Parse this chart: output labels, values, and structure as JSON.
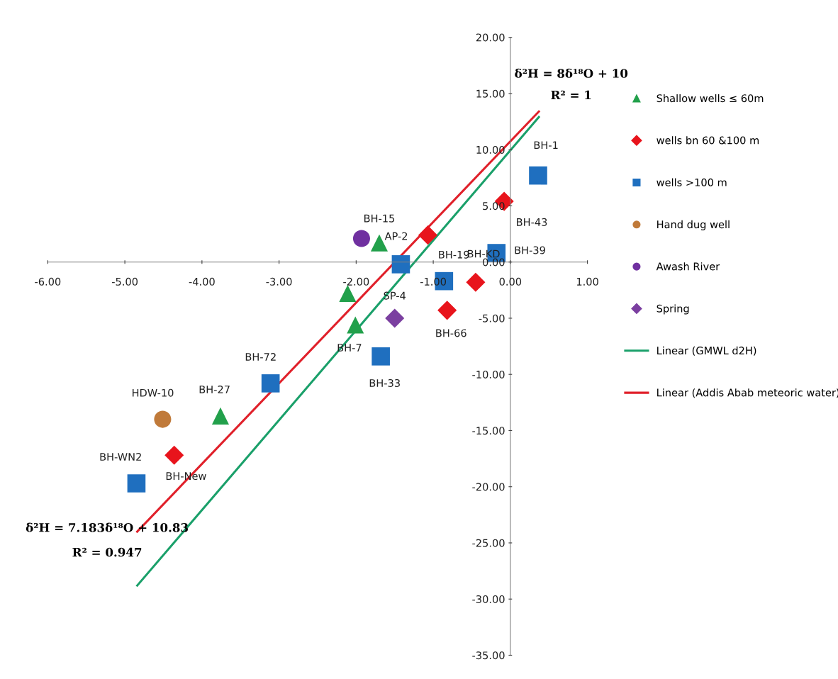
{
  "chart_data": {
    "type": "scatter",
    "xlim": [
      -6,
      1
    ],
    "ylim": [
      -35,
      20
    ],
    "xticks": [
      {
        "value": -6,
        "label": "-6.00"
      },
      {
        "value": -5,
        "label": "-5.00"
      },
      {
        "value": -4,
        "label": "-4.00"
      },
      {
        "value": -3,
        "label": "-3.00"
      },
      {
        "value": -2,
        "label": "-2.00"
      },
      {
        "value": -1,
        "label": "-1.00"
      },
      {
        "value": 0,
        "label": "0.00"
      },
      {
        "value": 1,
        "label": "1.00"
      }
    ],
    "yticks": [
      {
        "value": -35,
        "label": "-35.00"
      },
      {
        "value": -30,
        "label": "-30.00"
      },
      {
        "value": -25,
        "label": "-25.00"
      },
      {
        "value": -20,
        "label": "-20.00"
      },
      {
        "value": -15,
        "label": "-15.00"
      },
      {
        "value": -10,
        "label": "-10.00"
      },
      {
        "value": -5,
        "label": "-5.00"
      },
      {
        "value": 0,
        "label": "0.00"
      },
      {
        "value": 5,
        "label": "5.00"
      },
      {
        "value": 10,
        "label": "10.00"
      },
      {
        "value": 15,
        "label": "15.00"
      },
      {
        "value": 20,
        "label": "20.00"
      }
    ],
    "grid": false,
    "legend": "right",
    "series": [
      {
        "name": "Shallow wells ≤ 60m",
        "color": "#22a04b",
        "marker": "triangle",
        "x": [
          -1.7,
          -2.11,
          -2.01,
          -3.76
        ],
        "values": [
          1.7,
          -2.8,
          -5.6,
          -13.7
        ]
      },
      {
        "name": "wells bn 60 &100 m",
        "color": "#e8141c",
        "marker": "diamond",
        "x": [
          -1.07,
          -0.45,
          -0.08,
          -0.82,
          -4.36
        ],
        "values": [
          2.4,
          -1.8,
          5.4,
          -4.3,
          -17.2
        ]
      },
      {
        "name": "wells >100 m",
        "color": "#1f6fbf",
        "marker": "square",
        "x": [
          -1.42,
          -0.86,
          -0.18,
          0.36,
          -1.68,
          -3.11,
          -4.85
        ],
        "values": [
          -0.2,
          -1.7,
          0.8,
          7.7,
          -8.4,
          -10.8,
          -19.7
        ]
      },
      {
        "name": "Hand dug well",
        "color": "#c07a3a",
        "marker": "circle",
        "x": [
          -4.51
        ],
        "values": [
          -14.0
        ]
      },
      {
        "name": "Awash River",
        "color": "#7030a0",
        "marker": "circle",
        "x": [
          -1.93
        ],
        "values": [
          2.1
        ]
      },
      {
        "name": "Spring",
        "color": "#7b3fa0",
        "marker": "diamond",
        "x": [
          -1.5
        ],
        "values": [
          -5.0
        ]
      },
      {
        "name": "Linear (GMWL d2H)",
        "type": "line",
        "color": "#1aa06a",
        "marker": "none",
        "x": [
          -4.84,
          0.37
        ],
        "values": [
          -28.8,
          12.9
        ]
      },
      {
        "name": "Linear (Addis Abab meteoric water)",
        "type": "line",
        "color": "#e0202a",
        "marker": "none",
        "x": [
          -4.84,
          0.37
        ],
        "values": [
          -24.0,
          13.4
        ]
      }
    ],
    "annotations": [
      {
        "text": "BH-15",
        "x": -1.7,
        "y": 1.7
      },
      {
        "text": "AP-2",
        "x": -1.07,
        "y": 2.4
      },
      {
        "text": "BH-19",
        "x": -0.86,
        "y": -1.7
      },
      {
        "text": "BH-39",
        "x": -0.18,
        "y": 0.8
      },
      {
        "text": "BH-43",
        "x": -0.08,
        "y": 5.4
      },
      {
        "text": "BH-1",
        "x": 0.36,
        "y": 7.7
      },
      {
        "text": "BH-KD",
        "x": -0.45,
        "y": -1.8
      },
      {
        "text": "SP-4",
        "x": -1.5,
        "y": -5.0
      },
      {
        "text": "BH-66",
        "x": -0.82,
        "y": -4.3
      },
      {
        "text": "BH-7",
        "x": -2.01,
        "y": -5.6
      },
      {
        "text": "BH-33",
        "x": -1.68,
        "y": -8.4
      },
      {
        "text": "BH-72",
        "x": -3.11,
        "y": -10.8
      },
      {
        "text": "BH-27",
        "x": -3.76,
        "y": -13.7
      },
      {
        "text": "HDW-10",
        "x": -4.51,
        "y": -14.0
      },
      {
        "text": "BH-New",
        "x": -4.36,
        "y": -17.2
      },
      {
        "text": "BH-WN2",
        "x": -4.85,
        "y": -19.7
      },
      "δ²H = 8δ¹⁸O + 10",
      "R² = 1",
      "δ²H = 7.183δ¹⁸O + 10.83",
      "R² = 0.947"
    ]
  }
}
